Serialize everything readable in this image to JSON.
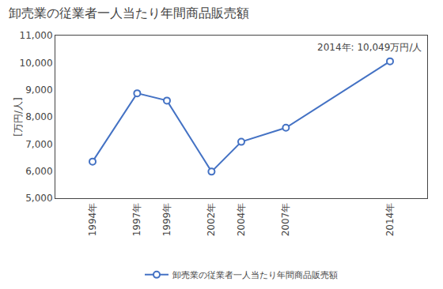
{
  "chart_data": {
    "type": "line",
    "title": "卸売業の従業者一人当たり年間商品販売額",
    "ylabel": "[万円/人]",
    "annotation": "2014年: 10,049万円/人",
    "x": [
      1994,
      1997,
      1999,
      2002,
      2004,
      2007,
      2014
    ],
    "series": [
      {
        "name": "卸売業の従業者一人当たり年間商品販売額",
        "color": "#4472C4",
        "marker": "circle",
        "values": [
          6350,
          8870,
          8600,
          5980,
          7080,
          7600,
          10049
        ]
      }
    ],
    "xlim": [
      1991.5,
      2016.5
    ],
    "xticks": [
      {
        "value": 1994,
        "label": "1994年"
      },
      {
        "value": 1997,
        "label": "1997年"
      },
      {
        "value": 1999,
        "label": "1999年"
      },
      {
        "value": 2002,
        "label": "2002年"
      },
      {
        "value": 2004,
        "label": "2004年"
      },
      {
        "value": 2007,
        "label": "2007年"
      },
      {
        "value": 2014,
        "label": "2014年"
      }
    ],
    "ylim": [
      5000,
      11000
    ],
    "yticks": [
      {
        "value": 5000,
        "label": "5,000"
      },
      {
        "value": 6000,
        "label": "6,000"
      },
      {
        "value": 7000,
        "label": "7,000"
      },
      {
        "value": 8000,
        "label": "8,000"
      },
      {
        "value": 9000,
        "label": "9,000"
      },
      {
        "value": 10000,
        "label": "10,000"
      },
      {
        "value": 11000,
        "label": "11,000"
      }
    ],
    "grid": false,
    "legend": "bottom"
  }
}
